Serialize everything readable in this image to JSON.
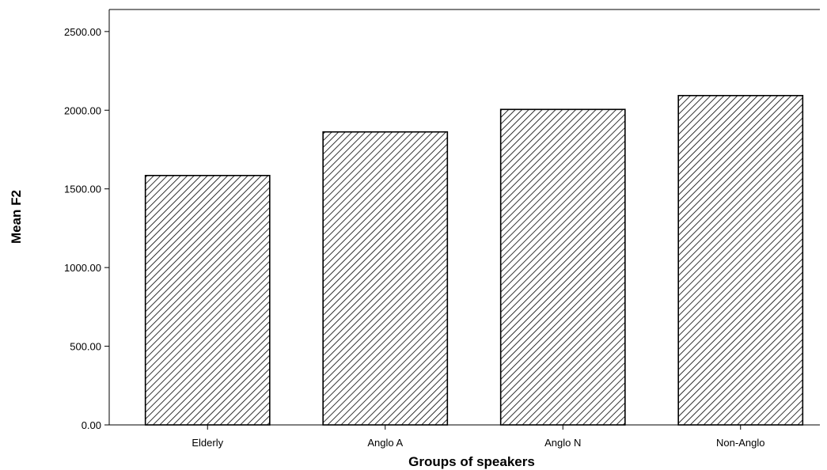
{
  "chart_data": {
    "type": "bar",
    "title": "",
    "xlabel": "Groups of speakers",
    "ylabel": "Mean F2",
    "categories": [
      "Elderly",
      "Anglo A",
      "Anglo N",
      "Non-Anglo"
    ],
    "values": [
      1585,
      1862,
      2005,
      2093
    ],
    "ylim": [
      0,
      2640
    ],
    "yticks": [
      "0.00",
      "500.00",
      "1000.00",
      "1500.00",
      "2000.00",
      "2500.00"
    ],
    "ytick_values": [
      0,
      500,
      1000,
      1500,
      2000,
      2500
    ],
    "grid": false,
    "bar_fill": "diagonal-hatch",
    "colors": {
      "bar_stroke": "#000000",
      "hatch": "#000000",
      "background": "#ffffff"
    }
  }
}
